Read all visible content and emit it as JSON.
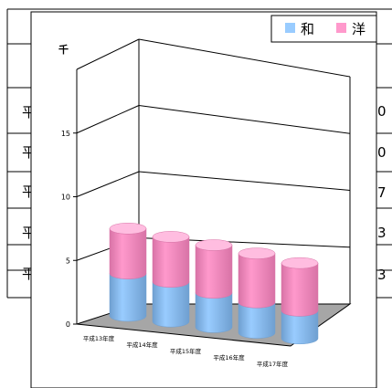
{
  "background_table": {
    "row_label_char": "平",
    "right_digits": [
      "0",
      "0",
      "7",
      "3",
      "3"
    ]
  },
  "chart_data": {
    "type": "bar",
    "stacked": true,
    "shape": "cylinder-3d",
    "unit_label": "千",
    "categories": [
      "平成13年度",
      "平成14年度",
      "平成15年度",
      "平成16年度",
      "平成17年度"
    ],
    "series": [
      {
        "name": "和",
        "color": "#99ccff",
        "values": [
          3.2,
          3.0,
          2.6,
          2.3,
          2.1
        ]
      },
      {
        "name": "洋",
        "color": "#ff99cc",
        "values": [
          3.4,
          3.4,
          3.6,
          3.7,
          3.6
        ]
      }
    ],
    "ylim": [
      0,
      20
    ],
    "y_ticks": [
      0,
      5,
      10,
      15
    ],
    "grid": true,
    "legend_position": "top-right"
  }
}
